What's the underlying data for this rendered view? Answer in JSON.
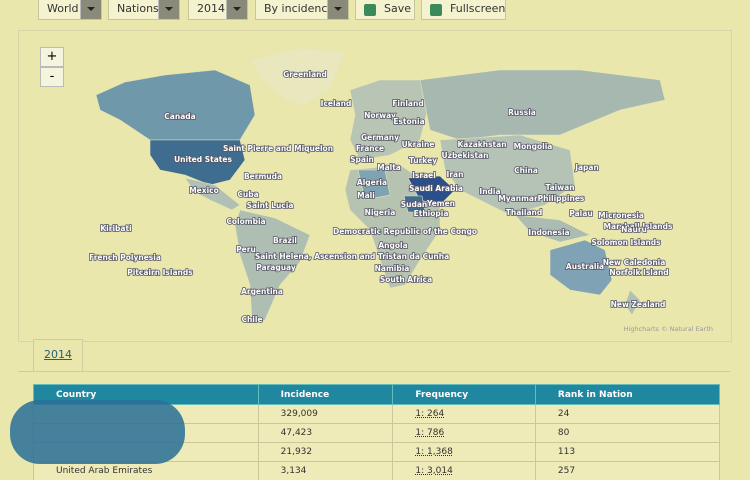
{
  "toolbar": {
    "selects": [
      "World",
      "Nations",
      "2014",
      "By incidence"
    ],
    "buttons": [
      "Save",
      "Fullscreen"
    ]
  },
  "map": {
    "zoom": [
      "+",
      "-"
    ],
    "credit": "Highcharts © Natural Earth",
    "labels": [
      "Greenland",
      "Iceland",
      "Finland",
      "Russia",
      "Norway",
      "Estonia",
      "Canada",
      "Germany",
      "Kazakhstan",
      "Ukraine",
      "Saint Pierre and Miquelon",
      "France",
      "Uzbekistan",
      "Mongolia",
      "United States",
      "Spain",
      "Turkey",
      "Malta",
      "Israel",
      "Iran",
      "China",
      "Japan",
      "Bermuda",
      "Algeria",
      "Saudi Arabia",
      "Mexico",
      "Cuba",
      "India",
      "Taiwan",
      "Mali",
      "Myanmar",
      "Philippines",
      "Saint Lucia",
      "Sudan",
      "Yemen",
      "Nigeria",
      "Ethiopia",
      "Thailand",
      "Palau",
      "Micronesia",
      "Colombia",
      "Marshall Islands",
      "Kiribati",
      "Democratic Republic of the Congo",
      "Indonesia",
      "Nauru",
      "Brazil",
      "Solomon Islands",
      "Angola",
      "Peru",
      "French Polynesia",
      "Saint Helena, Ascension and Tristan da Cunha",
      "New Caledonia",
      "Paraguay",
      "Namibia",
      "Australia",
      "Norfolk Island",
      "Pitcairn Islands",
      "South Africa",
      "Argentina",
      "New Zealand",
      "Chile"
    ]
  },
  "tab": "2014",
  "table": {
    "headers": [
      "Country",
      "Incidence",
      "Frequency",
      "Rank in Nation"
    ],
    "rows": [
      {
        "incidence": "329,009",
        "frequency": "1: 264",
        "rank": "24"
      },
      {
        "incidence": "47,423",
        "frequency": "1: 786",
        "rank": "80"
      },
      {
        "incidence": "21,932",
        "frequency": "1: 1,368",
        "rank": "113"
      },
      {
        "country": "United Arab Emirates",
        "incidence": "3,134",
        "frequency": "1: 3,014",
        "rank": "257"
      }
    ]
  }
}
